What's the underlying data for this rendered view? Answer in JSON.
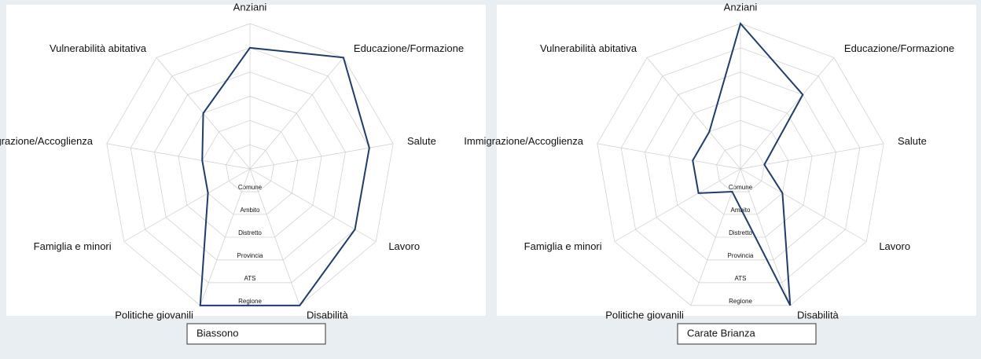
{
  "chart_data": [
    {
      "type": "radar",
      "categories": [
        "Anziani",
        "Educazione/Formazione",
        "Salute",
        "Lavoro",
        "Disabilità",
        "Politiche giovanili",
        "Famiglia e minori",
        "Immigrazione/Accoglienza",
        "Vulnerabilità abitativa"
      ],
      "ylim": [
        0,
        6
      ],
      "yticks": [
        {
          "value": 1,
          "label": "Comune"
        },
        {
          "value": 2,
          "label": "Ambito"
        },
        {
          "value": 3,
          "label": "Distretto"
        },
        {
          "value": 4,
          "label": "Provincia"
        },
        {
          "value": 5,
          "label": "ATS"
        },
        {
          "value": 6,
          "label": "Regione"
        }
      ],
      "series": [
        {
          "name": "Biassono",
          "color": "#1f3d6b",
          "values": [
            5,
            6,
            5,
            5,
            6,
            6,
            2,
            2,
            3
          ]
        }
      ]
    },
    {
      "type": "radar",
      "categories": [
        "Anziani",
        "Educazione/Formazione",
        "Salute",
        "Lavoro",
        "Disabilità",
        "Politiche giovanili",
        "Famiglia e minori",
        "Immigrazione/Accoglienza",
        "Vulnerabilità abitativa"
      ],
      "ylim": [
        0,
        6
      ],
      "yticks": [
        {
          "value": 1,
          "label": "Comune"
        },
        {
          "value": 2,
          "label": "Ambito"
        },
        {
          "value": 3,
          "label": "Distretto"
        },
        {
          "value": 4,
          "label": "Provincia"
        },
        {
          "value": 5,
          "label": "ATS"
        },
        {
          "value": 6,
          "label": "Regione"
        }
      ],
      "series": [
        {
          "name": "Carate Brianza",
          "color": "#1f3d6b",
          "values": [
            6,
            4,
            1,
            2,
            6,
            1,
            2,
            2,
            2
          ]
        }
      ]
    }
  ]
}
